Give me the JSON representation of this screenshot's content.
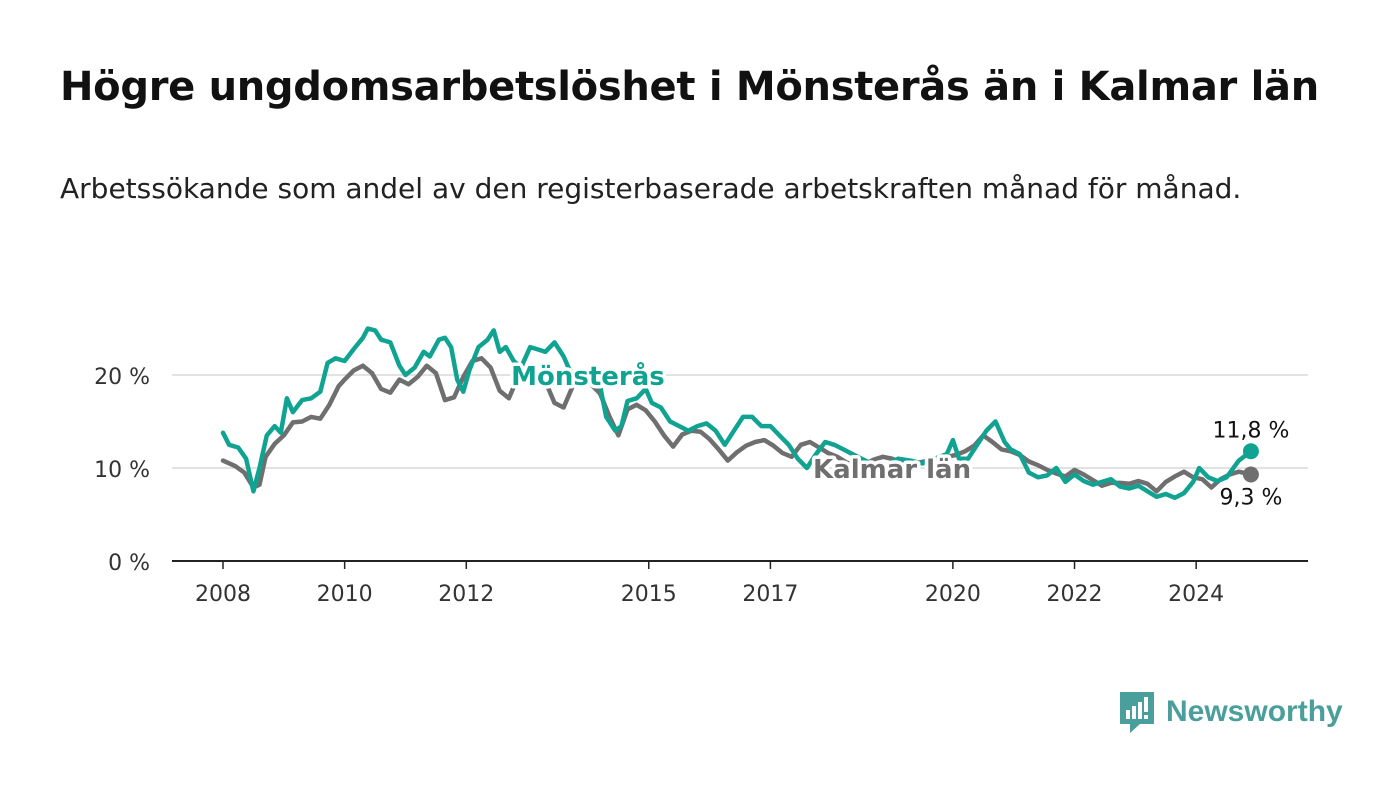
{
  "title": "Högre ungdomsarbetslöshet i Mönsterås än i Kalmar län",
  "subtitle": "Arbetssökande som andel av den registerbaserade arbetskraften månad för månad.",
  "brand": {
    "name": "Newsworthy"
  },
  "colors": {
    "teal": "#11a392",
    "gray": "#6f6f70",
    "grid": "#d9d9d9",
    "axis": "#222222"
  },
  "chart_data": {
    "type": "line",
    "ylim": [
      0,
      27
    ],
    "xlim": [
      2008.0,
      2025.0
    ],
    "y_ticks": [
      {
        "value": 0,
        "label": "0 %"
      },
      {
        "value": 10,
        "label": "10 %"
      },
      {
        "value": 20,
        "label": "20 %"
      }
    ],
    "x_ticks": [
      {
        "value": 2008,
        "label": "2008"
      },
      {
        "value": 2010,
        "label": "2010"
      },
      {
        "value": 2012,
        "label": "2012"
      },
      {
        "value": 2015,
        "label": "2015"
      },
      {
        "value": 2017,
        "label": "2017"
      },
      {
        "value": 2020,
        "label": "2020"
      },
      {
        "value": 2022,
        "label": "2022"
      },
      {
        "value": 2024,
        "label": "2024"
      }
    ],
    "grid": true,
    "series": [
      {
        "name": "Kalmar län",
        "color": "#6f6f70",
        "end_label": "9,3 %",
        "points": [
          [
            2008.0,
            10.8
          ],
          [
            2008.2,
            10.2
          ],
          [
            2008.35,
            9.5
          ],
          [
            2008.5,
            7.9
          ],
          [
            2008.6,
            8.2
          ],
          [
            2008.7,
            11.2
          ],
          [
            2008.85,
            12.6
          ],
          [
            2009.0,
            13.5
          ],
          [
            2009.15,
            14.9
          ],
          [
            2009.3,
            15.0
          ],
          [
            2009.45,
            15.5
          ],
          [
            2009.6,
            15.3
          ],
          [
            2009.75,
            16.8
          ],
          [
            2009.9,
            18.8
          ],
          [
            2010.0,
            19.5
          ],
          [
            2010.15,
            20.5
          ],
          [
            2010.3,
            21.0
          ],
          [
            2010.45,
            20.2
          ],
          [
            2010.6,
            18.5
          ],
          [
            2010.75,
            18.1
          ],
          [
            2010.9,
            19.5
          ],
          [
            2011.05,
            19.0
          ],
          [
            2011.2,
            19.8
          ],
          [
            2011.35,
            21.0
          ],
          [
            2011.5,
            20.2
          ],
          [
            2011.65,
            17.3
          ],
          [
            2011.8,
            17.6
          ],
          [
            2011.95,
            19.8
          ],
          [
            2012.1,
            21.5
          ],
          [
            2012.25,
            21.8
          ],
          [
            2012.4,
            20.8
          ],
          [
            2012.55,
            18.3
          ],
          [
            2012.7,
            17.5
          ],
          [
            2012.85,
            19.8
          ],
          [
            2013.0,
            20.8
          ],
          [
            2013.15,
            20.2
          ],
          [
            2013.3,
            19.3
          ],
          [
            2013.45,
            17.0
          ],
          [
            2013.6,
            16.5
          ],
          [
            2013.75,
            18.8
          ],
          [
            2013.9,
            19.5
          ],
          [
            2014.05,
            19.0
          ],
          [
            2014.2,
            18.0
          ],
          [
            2014.35,
            15.6
          ],
          [
            2014.5,
            13.5
          ],
          [
            2014.65,
            16.3
          ],
          [
            2014.8,
            16.8
          ],
          [
            2014.95,
            16.2
          ],
          [
            2015.1,
            15.0
          ],
          [
            2015.25,
            13.5
          ],
          [
            2015.4,
            12.3
          ],
          [
            2015.55,
            13.6
          ],
          [
            2015.7,
            14.0
          ],
          [
            2015.85,
            13.9
          ],
          [
            2016.0,
            13.1
          ],
          [
            2016.15,
            12.0
          ],
          [
            2016.3,
            10.8
          ],
          [
            2016.45,
            11.7
          ],
          [
            2016.6,
            12.4
          ],
          [
            2016.75,
            12.8
          ],
          [
            2016.9,
            13.0
          ],
          [
            2017.05,
            12.4
          ],
          [
            2017.2,
            11.6
          ],
          [
            2017.35,
            11.2
          ],
          [
            2017.5,
            12.5
          ],
          [
            2017.65,
            12.8
          ],
          [
            2017.8,
            12.2
          ],
          [
            2017.95,
            11.6
          ],
          [
            2018.1,
            11.2
          ],
          [
            2018.25,
            10.6
          ],
          [
            2018.4,
            10.2
          ],
          [
            2018.55,
            10.4
          ],
          [
            2018.7,
            10.9
          ],
          [
            2018.85,
            11.2
          ],
          [
            2019.0,
            11.0
          ],
          [
            2019.15,
            10.6
          ],
          [
            2019.3,
            10.3
          ],
          [
            2019.45,
            10.6
          ],
          [
            2019.6,
            10.8
          ],
          [
            2019.75,
            11.0
          ],
          [
            2019.9,
            11.2
          ],
          [
            2020.05,
            11.4
          ],
          [
            2020.2,
            11.8
          ],
          [
            2020.35,
            12.4
          ],
          [
            2020.5,
            13.5
          ],
          [
            2020.65,
            12.8
          ],
          [
            2020.8,
            12.0
          ],
          [
            2020.95,
            11.8
          ],
          [
            2021.1,
            11.4
          ],
          [
            2021.25,
            10.7
          ],
          [
            2021.4,
            10.3
          ],
          [
            2021.55,
            9.8
          ],
          [
            2021.7,
            9.4
          ],
          [
            2021.85,
            9.1
          ],
          [
            2022.0,
            9.8
          ],
          [
            2022.15,
            9.3
          ],
          [
            2022.3,
            8.7
          ],
          [
            2022.45,
            8.1
          ],
          [
            2022.6,
            8.4
          ],
          [
            2022.75,
            8.4
          ],
          [
            2022.9,
            8.3
          ],
          [
            2023.05,
            8.6
          ],
          [
            2023.2,
            8.3
          ],
          [
            2023.35,
            7.5
          ],
          [
            2023.5,
            8.5
          ],
          [
            2023.65,
            9.1
          ],
          [
            2023.8,
            9.6
          ],
          [
            2023.95,
            9.0
          ],
          [
            2024.1,
            8.8
          ],
          [
            2024.25,
            7.9
          ],
          [
            2024.4,
            8.8
          ],
          [
            2024.55,
            9.3
          ],
          [
            2024.7,
            9.6
          ],
          [
            2024.9,
            9.3
          ]
        ]
      },
      {
        "name": "Mönsterås",
        "color": "#11a392",
        "end_label": "11,8 %",
        "points": [
          [
            2008.0,
            13.8
          ],
          [
            2008.1,
            12.5
          ],
          [
            2008.25,
            12.2
          ],
          [
            2008.38,
            11.0
          ],
          [
            2008.5,
            7.5
          ],
          [
            2008.6,
            10.0
          ],
          [
            2008.72,
            13.5
          ],
          [
            2008.85,
            14.5
          ],
          [
            2008.95,
            13.8
          ],
          [
            2009.05,
            17.5
          ],
          [
            2009.15,
            16.0
          ],
          [
            2009.3,
            17.3
          ],
          [
            2009.45,
            17.5
          ],
          [
            2009.6,
            18.2
          ],
          [
            2009.72,
            21.3
          ],
          [
            2009.85,
            21.8
          ],
          [
            2010.0,
            21.5
          ],
          [
            2010.15,
            22.8
          ],
          [
            2010.3,
            24.0
          ],
          [
            2010.38,
            25.0
          ],
          [
            2010.5,
            24.8
          ],
          [
            2010.6,
            23.8
          ],
          [
            2010.75,
            23.5
          ],
          [
            2010.9,
            21.0
          ],
          [
            2011.0,
            20.0
          ],
          [
            2011.15,
            20.8
          ],
          [
            2011.3,
            22.5
          ],
          [
            2011.4,
            22.0
          ],
          [
            2011.55,
            23.8
          ],
          [
            2011.65,
            24.0
          ],
          [
            2011.75,
            23.0
          ],
          [
            2011.85,
            19.5
          ],
          [
            2011.95,
            18.2
          ],
          [
            2012.05,
            20.5
          ],
          [
            2012.2,
            23.0
          ],
          [
            2012.35,
            23.8
          ],
          [
            2012.45,
            24.8
          ],
          [
            2012.55,
            22.5
          ],
          [
            2012.65,
            23.0
          ],
          [
            2012.78,
            21.5
          ],
          [
            2012.9,
            20.8
          ],
          [
            2013.05,
            23.0
          ],
          [
            2013.2,
            22.7
          ],
          [
            2013.3,
            22.5
          ],
          [
            2013.45,
            23.5
          ],
          [
            2013.6,
            22.0
          ],
          [
            2013.7,
            20.5
          ],
          [
            2013.85,
            19.8
          ],
          [
            2014.0,
            20.0
          ],
          [
            2014.1,
            19.5
          ],
          [
            2014.2,
            18.8
          ],
          [
            2014.3,
            15.5
          ],
          [
            2014.45,
            14.0
          ],
          [
            2014.55,
            14.5
          ],
          [
            2014.65,
            17.2
          ],
          [
            2014.8,
            17.5
          ],
          [
            2014.95,
            18.5
          ],
          [
            2015.05,
            17.0
          ],
          [
            2015.2,
            16.5
          ],
          [
            2015.35,
            15.0
          ],
          [
            2015.5,
            14.5
          ],
          [
            2015.65,
            14.0
          ],
          [
            2015.8,
            14.5
          ],
          [
            2015.95,
            14.8
          ],
          [
            2016.1,
            14.0
          ],
          [
            2016.25,
            12.5
          ],
          [
            2016.4,
            14.0
          ],
          [
            2016.55,
            15.5
          ],
          [
            2016.7,
            15.5
          ],
          [
            2016.85,
            14.5
          ],
          [
            2017.0,
            14.5
          ],
          [
            2017.15,
            13.5
          ],
          [
            2017.3,
            12.5
          ],
          [
            2017.45,
            11.0
          ],
          [
            2017.6,
            10.0
          ],
          [
            2017.75,
            11.5
          ],
          [
            2017.9,
            12.8
          ],
          [
            2018.05,
            12.5
          ],
          [
            2018.2,
            12.0
          ],
          [
            2018.35,
            11.5
          ],
          [
            2018.5,
            11.0
          ],
          [
            2018.65,
            10.5
          ],
          [
            2018.8,
            10.0
          ],
          [
            2018.95,
            10.5
          ],
          [
            2019.1,
            11.0
          ],
          [
            2019.3,
            10.8
          ],
          [
            2019.5,
            10.5
          ],
          [
            2019.7,
            11.0
          ],
          [
            2019.9,
            11.5
          ],
          [
            2020.0,
            13.0
          ],
          [
            2020.1,
            11.0
          ],
          [
            2020.25,
            11.0
          ],
          [
            2020.4,
            12.5
          ],
          [
            2020.55,
            14.0
          ],
          [
            2020.7,
            15.0
          ],
          [
            2020.85,
            12.8
          ],
          [
            2020.95,
            12.0
          ],
          [
            2021.1,
            11.5
          ],
          [
            2021.25,
            9.5
          ],
          [
            2021.4,
            9.0
          ],
          [
            2021.55,
            9.2
          ],
          [
            2021.7,
            10.0
          ],
          [
            2021.85,
            8.5
          ],
          [
            2022.0,
            9.3
          ],
          [
            2022.15,
            8.6
          ],
          [
            2022.3,
            8.2
          ],
          [
            2022.45,
            8.5
          ],
          [
            2022.6,
            8.8
          ],
          [
            2022.75,
            8.0
          ],
          [
            2022.9,
            7.8
          ],
          [
            2023.05,
            8.1
          ],
          [
            2023.2,
            7.5
          ],
          [
            2023.35,
            6.9
          ],
          [
            2023.5,
            7.2
          ],
          [
            2023.65,
            6.8
          ],
          [
            2023.8,
            7.3
          ],
          [
            2023.95,
            8.5
          ],
          [
            2024.05,
            10.0
          ],
          [
            2024.2,
            9.0
          ],
          [
            2024.35,
            8.6
          ],
          [
            2024.5,
            9.0
          ],
          [
            2024.7,
            10.8
          ],
          [
            2024.9,
            11.8
          ]
        ]
      }
    ],
    "annotations": [
      {
        "text": "Mönsterås",
        "series": "Mönsterås",
        "x": 2014.0,
        "y": 20.0
      },
      {
        "text": "Kalmar län",
        "series": "Kalmar län",
        "x": 2019.0,
        "y": 10.0
      }
    ]
  }
}
